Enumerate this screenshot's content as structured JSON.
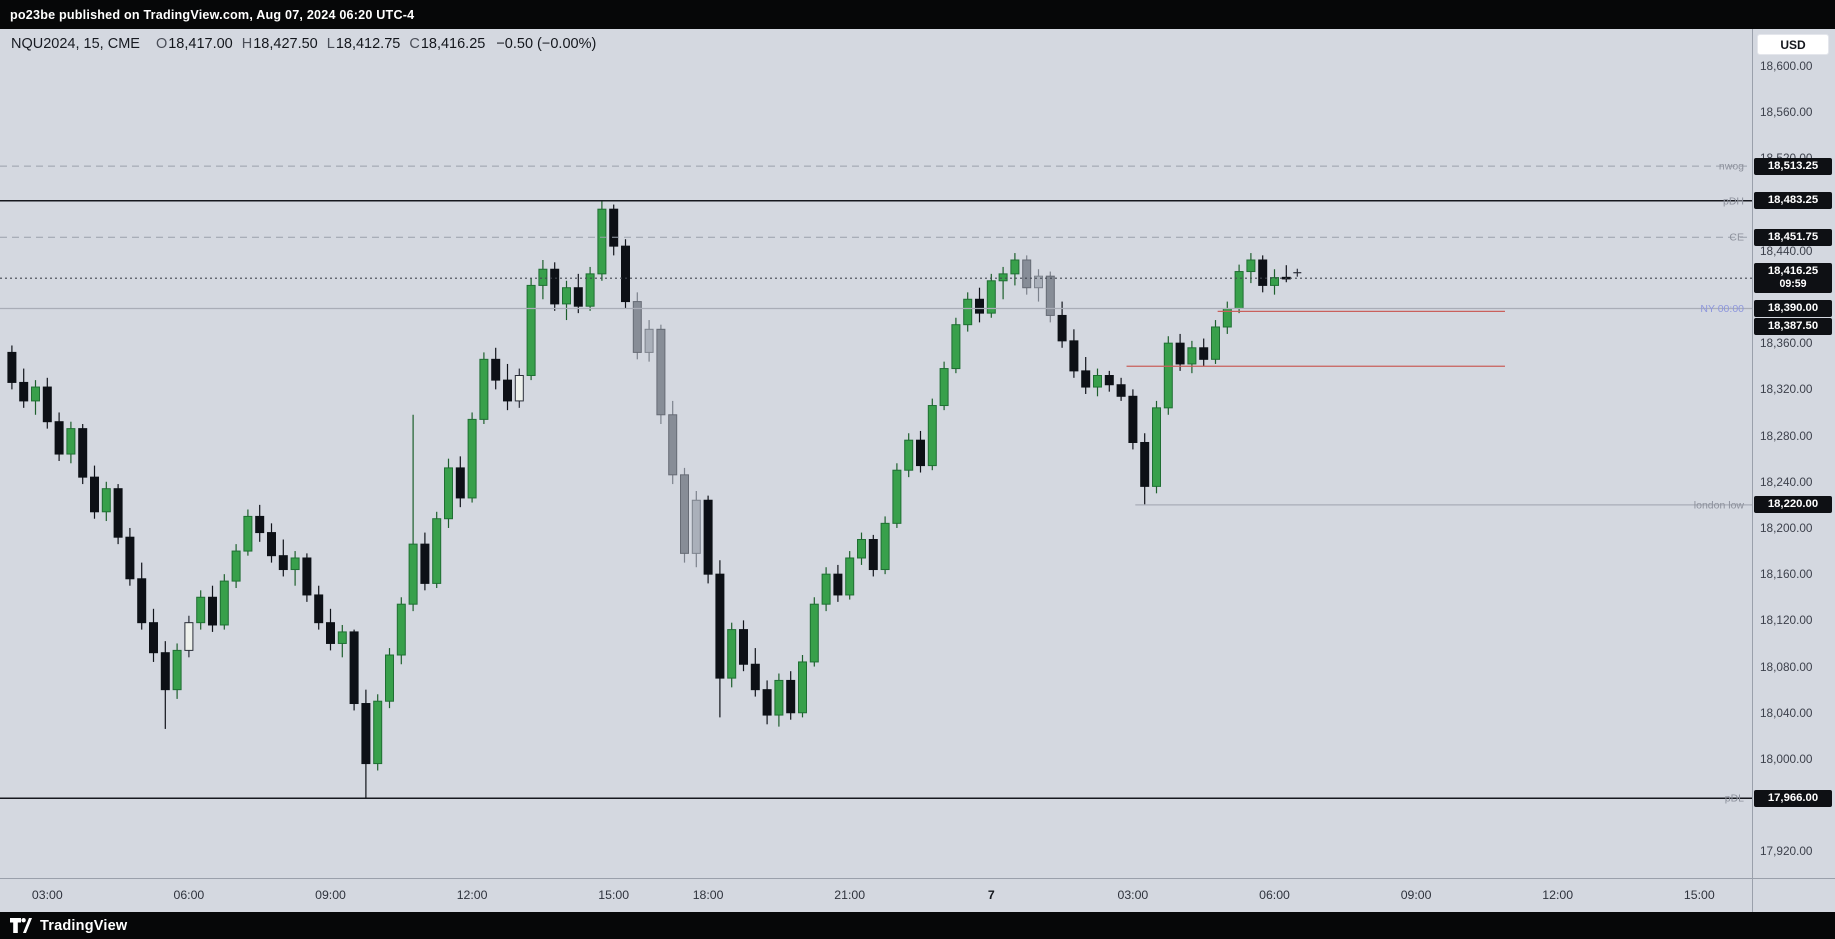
{
  "top_bar": {
    "text": "po23be published on TradingView.com, Aug 07, 2024 06:20 UTC-4"
  },
  "legend": {
    "title": "NQU2024, 15, CME",
    "items": [
      {
        "k": "O",
        "v": "18,417.00"
      },
      {
        "k": "H",
        "v": "18,427.50"
      },
      {
        "k": "L",
        "v": "18,412.75"
      },
      {
        "k": "C",
        "v": "18,416.25"
      }
    ],
    "change": "−0.50 (−0.00%)"
  },
  "currency_button": "USD",
  "footer": {
    "brand": "TradingView"
  },
  "colors": {
    "background": "#d4d8e0",
    "up": "#38a04b",
    "up_border": "#1f6f33",
    "down": "#0d1016",
    "gray_up": "#aab0ba",
    "gray_up_border": "#7d838d",
    "gray_down": "#878d97",
    "gray_down_border": "#666b75",
    "hollow": "#eef1ec",
    "hollow_border": "#2a2e39",
    "wick_up": "#1d5f2c",
    "wick_down": "#10131a",
    "wick_gray": "#7c828c",
    "badge_bg": "#0e1014",
    "red_line": "#c9605c",
    "axis_text": "#3d414c"
  },
  "chart_data": {
    "type": "candlestick",
    "symbol": "NQU2024",
    "interval": "15",
    "exchange": "CME",
    "grid": "off",
    "legend_position": "top-left",
    "ylim": [
      17890,
      18632
    ],
    "price_ticks": [
      {
        "p": 18600,
        "t": "18,600.00"
      },
      {
        "p": 18560,
        "t": "18,560.00"
      },
      {
        "p": 18520,
        "t": "18,520.00"
      },
      {
        "p": 18440,
        "t": "18,440.00"
      },
      {
        "p": 18360,
        "t": "18,360.00"
      },
      {
        "p": 18320,
        "t": "18,320.00"
      },
      {
        "p": 18280,
        "t": "18,280.00"
      },
      {
        "p": 18240,
        "t": "18,240.00"
      },
      {
        "p": 18200,
        "t": "18,200.00"
      },
      {
        "p": 18160,
        "t": "18,160.00"
      },
      {
        "p": 18120,
        "t": "18,120.00"
      },
      {
        "p": 18080,
        "t": "18,080.00"
      },
      {
        "p": 18040,
        "t": "18,040.00"
      },
      {
        "p": 18000,
        "t": "18,000.00"
      },
      {
        "p": 17920,
        "t": "17,920.00"
      }
    ],
    "price_badges": [
      {
        "p": 18513.25,
        "t": "18,513.25"
      },
      {
        "p": 18483.25,
        "t": "18,483.25"
      },
      {
        "p": 18451.75,
        "t": "18,451.75"
      },
      {
        "p": 18416.25,
        "t": "18,416.25",
        "countdown": "09:59",
        "current": true
      },
      {
        "p": 18390.0,
        "t": "18,390.00"
      },
      {
        "p": 18387.5,
        "t": "18,387.50"
      },
      {
        "p": 18220.0,
        "t": "18,220.00"
      },
      {
        "p": 17966.0,
        "t": "17,966.00"
      }
    ],
    "levels": [
      {
        "name": "nwog",
        "p": 18513.25,
        "style": "dashed",
        "color": "#9aa0ab",
        "w": 1,
        "from": 0,
        "to": 1,
        "label": "nwog",
        "lcolor": "#8d919c"
      },
      {
        "name": "pdh",
        "p": 18483.25,
        "style": "solid",
        "color": "#16181e",
        "w": 1.5,
        "from": 0,
        "to": 1,
        "label": "pDH",
        "lcolor": "#8d919c"
      },
      {
        "name": "ce",
        "p": 18451.75,
        "style": "dashed",
        "color": "#9aa0ab",
        "w": 1,
        "from": 0,
        "to": 1,
        "label": "CE",
        "lcolor": "#8d919c"
      },
      {
        "name": "ny-midnight",
        "p": 18390.0,
        "style": "solid",
        "color": "#a9adb7",
        "w": 1.2,
        "from": 0,
        "to": 1,
        "label": "NY 00:00",
        "lcolor": "#8e97dd"
      },
      {
        "name": "red-level-upper",
        "p": 18387.5,
        "style": "solid",
        "color": "#c9605c",
        "w": 1.2,
        "from": 0.695,
        "to": 0.859
      },
      {
        "name": "red-level-lower",
        "p": 18340.0,
        "style": "solid",
        "color": "#c9605c",
        "w": 1.2,
        "from": 0.643,
        "to": 0.859
      },
      {
        "name": "london-low",
        "p": 18220.0,
        "style": "solid",
        "color": "#a9adb7",
        "w": 1.2,
        "from": 0.648,
        "to": 1,
        "label": "london low",
        "lcolor": "#8d919c"
      },
      {
        "name": "pdl",
        "p": 17966.0,
        "style": "solid",
        "color": "#16181e",
        "w": 1.5,
        "from": 0,
        "to": 1,
        "label": "pDL",
        "lcolor": "#8d919c"
      }
    ],
    "current_price": {
      "p": 18416.25,
      "t": "18,416.25",
      "countdown": "09:59",
      "line_color": "#41454f"
    },
    "time_axis": [
      {
        "i": 3,
        "t": "03:00"
      },
      {
        "i": 15,
        "t": "06:00"
      },
      {
        "i": 27,
        "t": "09:00"
      },
      {
        "i": 39,
        "t": "12:00"
      },
      {
        "i": 51,
        "t": "15:00"
      },
      {
        "i": 59,
        "t": "18:00"
      },
      {
        "i": 71,
        "t": "21:00"
      },
      {
        "i": 83,
        "t": "7",
        "bold": true
      },
      {
        "i": 95,
        "t": "03:00"
      },
      {
        "i": 107,
        "t": "06:00"
      },
      {
        "i": 119,
        "t": "09:00"
      },
      {
        "i": 131,
        "t": "12:00"
      },
      {
        "i": 143,
        "t": "15:00"
      }
    ],
    "candles": [
      [
        18352,
        18358,
        18320,
        18326,
        "d"
      ],
      [
        18326,
        18338,
        18304,
        18310,
        "d"
      ],
      [
        18310,
        18328,
        18298,
        18322,
        "u"
      ],
      [
        18322,
        18330,
        18286,
        18292,
        "d"
      ],
      [
        18292,
        18300,
        18258,
        18264,
        "d"
      ],
      [
        18264,
        18292,
        18256,
        18286,
        "u"
      ],
      [
        18286,
        18290,
        18238,
        18244,
        "d"
      ],
      [
        18244,
        18254,
        18208,
        18214,
        "d"
      ],
      [
        18214,
        18240,
        18206,
        18234,
        "u"
      ],
      [
        18234,
        18238,
        18186,
        18192,
        "d"
      ],
      [
        18192,
        18200,
        18150,
        18156,
        "d"
      ],
      [
        18156,
        18170,
        18112,
        18118,
        "d"
      ],
      [
        18118,
        18130,
        18084,
        18092,
        "d"
      ],
      [
        18092,
        18102,
        18026,
        18060,
        "d"
      ],
      [
        18060,
        18100,
        18052,
        18094,
        "u"
      ],
      [
        18094,
        18124,
        18088,
        18118,
        "w"
      ],
      [
        18118,
        18146,
        18112,
        18140,
        "u"
      ],
      [
        18140,
        18150,
        18110,
        18116,
        "d"
      ],
      [
        18116,
        18160,
        18112,
        18154,
        "u"
      ],
      [
        18154,
        18186,
        18148,
        18180,
        "u"
      ],
      [
        18180,
        18216,
        18176,
        18210,
        "u"
      ],
      [
        18210,
        18220,
        18188,
        18196,
        "d"
      ],
      [
        18196,
        18204,
        18170,
        18176,
        "d"
      ],
      [
        18176,
        18190,
        18158,
        18164,
        "d"
      ],
      [
        18164,
        18180,
        18150,
        18174,
        "u"
      ],
      [
        18174,
        18178,
        18136,
        18142,
        "d"
      ],
      [
        18142,
        18150,
        18112,
        18118,
        "d"
      ],
      [
        18118,
        18130,
        18094,
        18100,
        "d"
      ],
      [
        18100,
        18116,
        18088,
        18110,
        "u"
      ],
      [
        18110,
        18112,
        18042,
        18048,
        "d"
      ],
      [
        18048,
        18060,
        17966,
        17996,
        "d"
      ],
      [
        17996,
        18056,
        17990,
        18050,
        "u"
      ],
      [
        18050,
        18096,
        18044,
        18090,
        "u"
      ],
      [
        18090,
        18140,
        18082,
        18134,
        "u"
      ],
      [
        18134,
        18298,
        18128,
        18186,
        "u"
      ],
      [
        18186,
        18196,
        18146,
        18152,
        "d"
      ],
      [
        18152,
        18214,
        18148,
        18208,
        "u"
      ],
      [
        18208,
        18260,
        18200,
        18252,
        "u"
      ],
      [
        18252,
        18262,
        18218,
        18226,
        "d"
      ],
      [
        18226,
        18300,
        18222,
        18294,
        "u"
      ],
      [
        18294,
        18352,
        18290,
        18346,
        "u"
      ],
      [
        18346,
        18356,
        18320,
        18328,
        "d"
      ],
      [
        18328,
        18342,
        18302,
        18310,
        "d"
      ],
      [
        18310,
        18338,
        18304,
        18332,
        "w"
      ],
      [
        18332,
        18416,
        18328,
        18410,
        "u"
      ],
      [
        18410,
        18432,
        18398,
        18424,
        "u"
      ],
      [
        18424,
        18430,
        18388,
        18394,
        "d"
      ],
      [
        18394,
        18414,
        18380,
        18408,
        "u"
      ],
      [
        18408,
        18420,
        18386,
        18392,
        "d"
      ],
      [
        18392,
        18426,
        18388,
        18420,
        "u"
      ],
      [
        18420,
        18483,
        18414,
        18476,
        "u"
      ],
      [
        18476,
        18480,
        18436,
        18444,
        "d"
      ],
      [
        18444,
        18450,
        18390,
        18396,
        "d"
      ],
      [
        18396,
        18404,
        18346,
        18352,
        "gd"
      ],
      [
        18352,
        18380,
        18344,
        18372,
        "gu"
      ],
      [
        18372,
        18376,
        18290,
        18298,
        "gd"
      ],
      [
        18298,
        18310,
        18238,
        18246,
        "gd"
      ],
      [
        18246,
        18252,
        18170,
        18178,
        "gd"
      ],
      [
        18178,
        18232,
        18166,
        18224,
        "gu"
      ],
      [
        18224,
        18228,
        18152,
        18160,
        "d"
      ],
      [
        18160,
        18172,
        18036,
        18070,
        "d"
      ],
      [
        18070,
        18118,
        18062,
        18112,
        "u"
      ],
      [
        18112,
        18120,
        18076,
        18082,
        "d"
      ],
      [
        18082,
        18096,
        18054,
        18060,
        "d"
      ],
      [
        18060,
        18068,
        18030,
        18038,
        "d"
      ],
      [
        18038,
        18074,
        18028,
        18068,
        "u"
      ],
      [
        18068,
        18076,
        18034,
        18040,
        "d"
      ],
      [
        18040,
        18090,
        18036,
        18084,
        "u"
      ],
      [
        18084,
        18140,
        18080,
        18134,
        "u"
      ],
      [
        18134,
        18166,
        18128,
        18160,
        "u"
      ],
      [
        18160,
        18168,
        18136,
        18142,
        "d"
      ],
      [
        18142,
        18180,
        18138,
        18174,
        "u"
      ],
      [
        18174,
        18196,
        18168,
        18190,
        "u"
      ],
      [
        18190,
        18194,
        18158,
        18164,
        "d"
      ],
      [
        18164,
        18210,
        18160,
        18204,
        "u"
      ],
      [
        18204,
        18256,
        18200,
        18250,
        "u"
      ],
      [
        18250,
        18282,
        18244,
        18276,
        "u"
      ],
      [
        18276,
        18284,
        18248,
        18254,
        "d"
      ],
      [
        18254,
        18312,
        18250,
        18306,
        "u"
      ],
      [
        18306,
        18344,
        18302,
        18338,
        "u"
      ],
      [
        18338,
        18382,
        18334,
        18376,
        "u"
      ],
      [
        18376,
        18404,
        18370,
        18398,
        "u"
      ],
      [
        18398,
        18408,
        18378,
        18386,
        "d"
      ],
      [
        18386,
        18420,
        18382,
        18414,
        "u"
      ],
      [
        18414,
        18426,
        18398,
        18420,
        "u"
      ],
      [
        18420,
        18438,
        18410,
        18432,
        "u"
      ],
      [
        18432,
        18436,
        18402,
        18408,
        "gd"
      ],
      [
        18408,
        18424,
        18396,
        18418,
        "gu"
      ],
      [
        18418,
        18422,
        18378,
        18384,
        "gd"
      ],
      [
        18384,
        18396,
        18356,
        18362,
        "d"
      ],
      [
        18362,
        18372,
        18330,
        18336,
        "d"
      ],
      [
        18336,
        18348,
        18316,
        18322,
        "d"
      ],
      [
        18322,
        18338,
        18314,
        18332,
        "u"
      ],
      [
        18332,
        18336,
        18318,
        18324,
        "d"
      ],
      [
        18324,
        18330,
        18310,
        18314,
        "d"
      ],
      [
        18314,
        18320,
        18268,
        18274,
        "d"
      ],
      [
        18274,
        18282,
        18220,
        18236,
        "d"
      ],
      [
        18236,
        18310,
        18230,
        18304,
        "u"
      ],
      [
        18304,
        18366,
        18298,
        18360,
        "u"
      ],
      [
        18360,
        18368,
        18336,
        18342,
        "d"
      ],
      [
        18342,
        18362,
        18334,
        18356,
        "u"
      ],
      [
        18356,
        18364,
        18340,
        18346,
        "d"
      ],
      [
        18346,
        18380,
        18342,
        18374,
        "u"
      ],
      [
        18374,
        18396,
        18368,
        18390,
        "u"
      ],
      [
        18390,
        18428,
        18386,
        18422,
        "u"
      ],
      [
        18422,
        18438,
        18412,
        18432,
        "u"
      ],
      [
        18432,
        18436,
        18404,
        18410,
        "d"
      ],
      [
        18410,
        18424,
        18402,
        18416.75,
        "u"
      ],
      [
        18417,
        18427.5,
        18412.75,
        18416.25,
        "d"
      ]
    ]
  }
}
